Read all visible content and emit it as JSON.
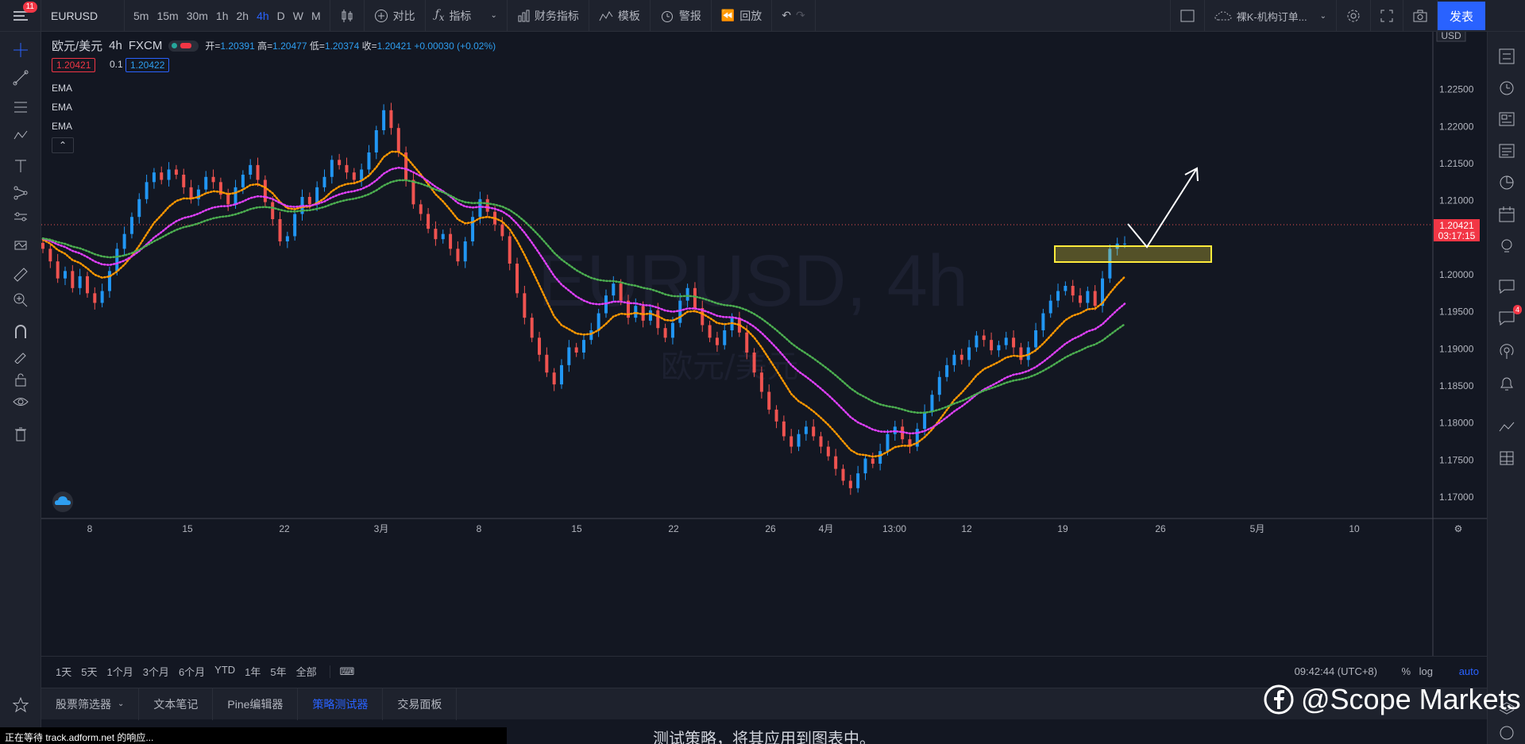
{
  "topbar": {
    "menu_badge": "11",
    "symbol": "EURUSD",
    "intervals": [
      "5m",
      "15m",
      "30m",
      "1h",
      "2h",
      "4h",
      "D",
      "W",
      "M"
    ],
    "active_interval": "4h",
    "compare_label": "对比",
    "indicators_label": "指标",
    "financials_label": "财务指标",
    "templates_label": "模板",
    "alert_label": "警报",
    "replay_label": "回放",
    "layout_name": "裸K-机构订单...",
    "publish_label": "发表"
  },
  "legend": {
    "title": "欧元/美元",
    "interval": "4h",
    "source": "FXCM",
    "open_label": "开=",
    "open": "1.20391",
    "high_label": "高=",
    "high": "1.20477",
    "low_label": "低=",
    "low": "1.20374",
    "close_label": "收=",
    "close": "1.20421",
    "change": "+0.00030 (+0.02%)",
    "bid": "1.20421",
    "spread": "0.1",
    "ask": "1.20422",
    "indicators": [
      "EMA",
      "EMA",
      "EMA"
    ],
    "collapse_glyph": "⌃"
  },
  "watermark": {
    "symbol_text": "EURUSD, 4h",
    "cn_text": "欧元/美元"
  },
  "price_axis": {
    "currency": "USD",
    "labels": [
      "1.22500",
      "1.22000",
      "1.21500",
      "1.21000",
      "1.20500",
      "1.20000",
      "1.19500",
      "1.19000",
      "1.18500",
      "1.18000",
      "1.17500",
      "1.17000"
    ],
    "current_price": "1.20421",
    "countdown": "03:17:15"
  },
  "time_axis": {
    "labels": [
      "8",
      "15",
      "22",
      "3月",
      "8",
      "15",
      "22",
      "26",
      "4月",
      "13:00",
      "12",
      "19",
      "26",
      "5月",
      "10"
    ]
  },
  "chart_data": {
    "type": "candlestick",
    "symbol": "EURUSD",
    "interval": "4h",
    "ylim": [
      1.1685,
      1.2285
    ],
    "ema_colors": [
      "#ff9800",
      "#e040fb",
      "#4caf50"
    ],
    "up_color": "#2196f3",
    "down_color": "#ef5350",
    "closes": [
      1.2035,
      1.2018,
      1.1995,
      1.2005,
      1.1982,
      1.1998,
      1.1975,
      1.1962,
      1.1978,
      1.2005,
      1.2035,
      1.2055,
      1.2078,
      1.2102,
      1.2125,
      1.2138,
      1.2128,
      1.2142,
      1.2135,
      1.2118,
      1.2102,
      1.2115,
      1.2132,
      1.2125,
      1.2108,
      1.2095,
      1.2118,
      1.2135,
      1.2148,
      1.2128,
      1.2098,
      1.2075,
      1.2045,
      1.2052,
      1.2082,
      1.2105,
      1.2095,
      1.2118,
      1.2132,
      1.2155,
      1.2148,
      1.2138,
      1.2128,
      1.2142,
      1.2165,
      1.2195,
      1.2222,
      1.2198,
      1.2165,
      1.2128,
      1.2095,
      1.2082,
      1.2062,
      1.2048,
      1.2055,
      1.2035,
      1.2018,
      1.2045,
      1.2078,
      1.2102,
      1.2085,
      1.2068,
      1.2052,
      1.2015,
      1.1975,
      1.1942,
      1.1915,
      1.1892,
      1.1868,
      1.1852,
      1.1878,
      1.1902,
      1.1895,
      1.1912,
      1.1925,
      1.1948,
      1.1972,
      1.1988,
      1.1965,
      1.1942,
      1.1958,
      1.1938,
      1.1952,
      1.1928,
      1.1915,
      1.1935,
      1.1965,
      1.1982,
      1.1955,
      1.1932,
      1.1915,
      1.1905,
      1.1925,
      1.1942,
      1.1922,
      1.1895,
      1.1868,
      1.1842,
      1.1818,
      1.1802,
      1.1782,
      1.1768,
      1.1785,
      1.1795,
      1.1782,
      1.1768,
      1.1755,
      1.1738,
      1.1722,
      1.1712,
      1.1732,
      1.1752,
      1.1745,
      1.1762,
      1.1785,
      1.1795,
      1.1778,
      1.1768,
      1.1792,
      1.1815,
      1.1838,
      1.1862,
      1.1878,
      1.1892,
      1.1885,
      1.1902,
      1.1918,
      1.1912,
      1.1898,
      1.1905,
      1.1915,
      1.1902,
      1.1885,
      1.1902,
      1.1925,
      1.1948,
      1.1965,
      1.1978,
      1.1985,
      1.1972,
      1.1962,
      1.1978,
      1.1958,
      1.1995,
      1.2035,
      1.2042,
      1.2042
    ]
  },
  "drawings": {
    "zone_color": "#ffeb3b"
  },
  "bottom_bar": {
    "ranges": [
      "1天",
      "5天",
      "1个月",
      "3个月",
      "6个月",
      "YTD",
      "1年",
      "5年",
      "全部"
    ],
    "time": "09:42:44 (UTC+8)",
    "percent": "%",
    "log": "log",
    "auto": "auto"
  },
  "panel_tabs": {
    "tabs": [
      "股票筛选器",
      "文本笔记",
      "Pine编辑器",
      "策略测试器",
      "交易面板"
    ],
    "active": "策略测试器"
  },
  "status_text": "正在等待 track.adform.net 的响应...",
  "hint_text": "测试策略，将其应用到图表中。",
  "brand_watermark": "@Scope Markets",
  "right_badge": "4"
}
